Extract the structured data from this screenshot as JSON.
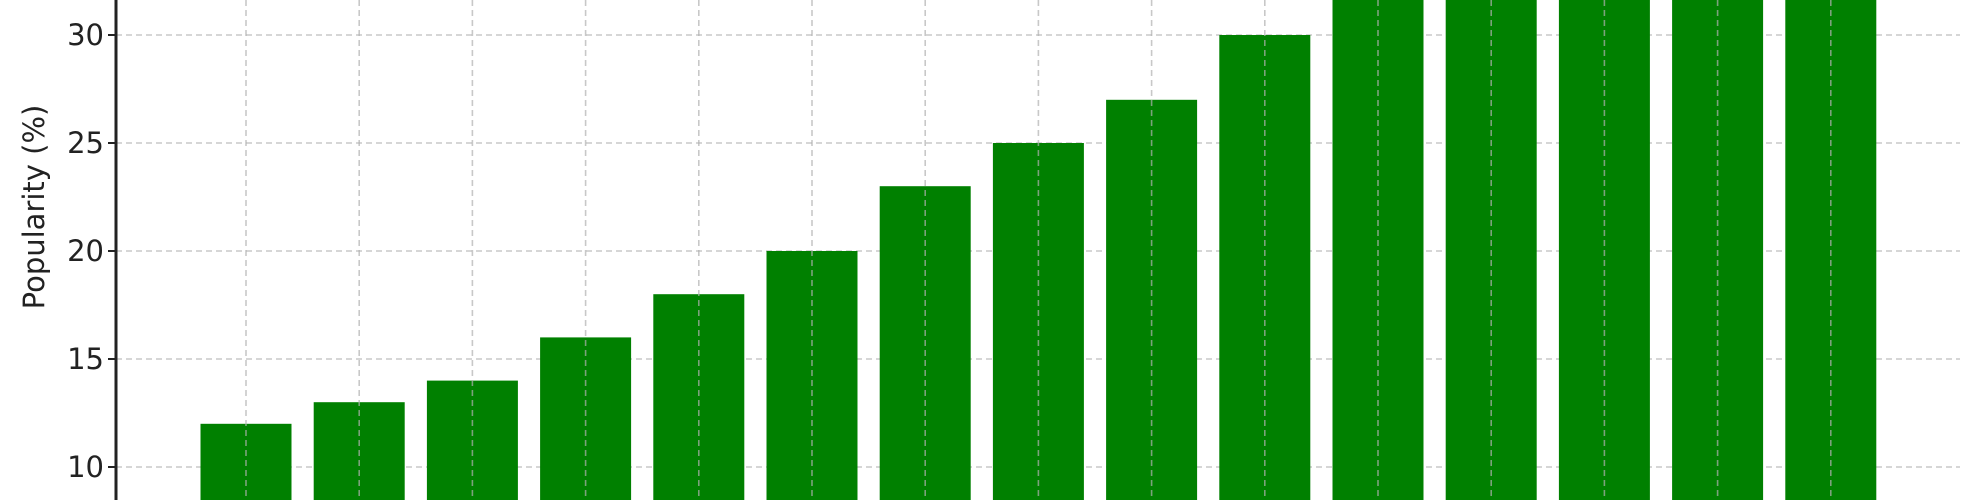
{
  "chart_data": {
    "type": "bar",
    "title": "",
    "xlabel": "",
    "ylabel": "Popularity (%)",
    "ylim": [
      8.5,
      31.6
    ],
    "yticks": [
      10,
      15,
      20,
      25,
      30
    ],
    "grid": true,
    "bar_color": "#008000",
    "values": [
      12,
      13,
      14,
      16,
      18,
      20,
      23,
      25,
      27,
      30,
      null,
      null,
      null,
      null,
      null
    ]
  }
}
